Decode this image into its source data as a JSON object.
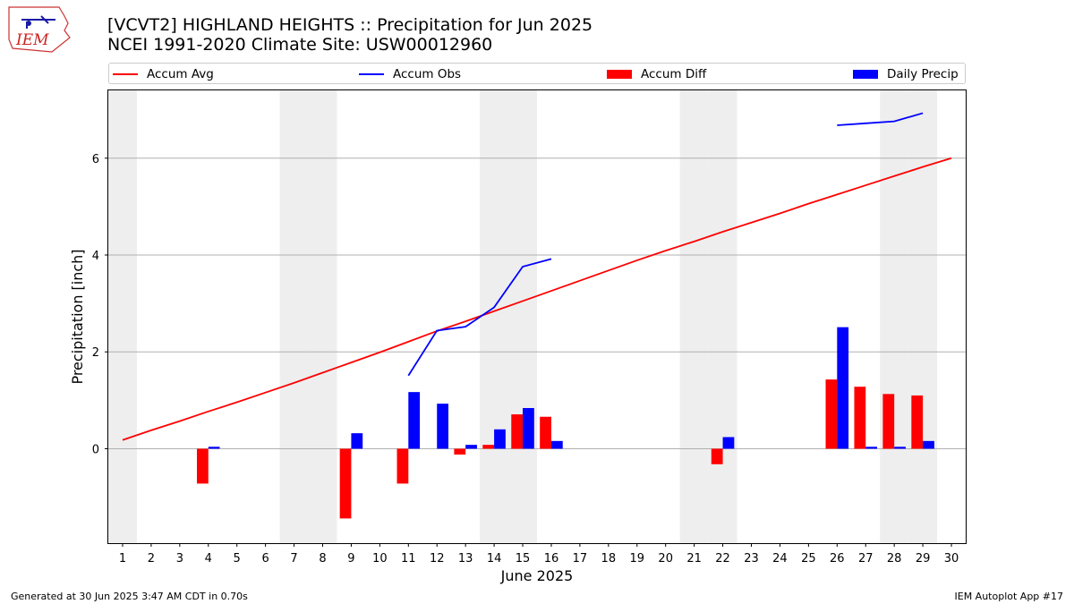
{
  "header": {
    "title_line1": "[VCVT2] HIGHLAND HEIGHTS :: Precipitation for Jun 2025",
    "title_line2": "NCEI 1991-2020 Climate Site: USW00012960",
    "logo_text": "IEM"
  },
  "legend": {
    "placement": "top, above plot",
    "items": [
      {
        "label": "Accum Avg",
        "kind": "line",
        "color": "#ff0000"
      },
      {
        "label": "Accum Obs",
        "kind": "line",
        "color": "#0000ff"
      },
      {
        "label": "Accum Diff",
        "kind": "bar",
        "color": "#ff0000"
      },
      {
        "label": "Daily Precip",
        "kind": "bar",
        "color": "#0000ff"
      }
    ]
  },
  "footer": {
    "left": "Generated at 30 Jun 2025 3:47 AM CDT in 0.70s",
    "right": "IEM Autoplot App #17"
  },
  "colors": {
    "avg": "#ff0000",
    "obs": "#0000ff",
    "diff": "#ff0000",
    "daily": "#0000ff",
    "weekend_shade": "#eeeeee",
    "grid": "#b0b0b0"
  },
  "chart_data": {
    "type": "bar",
    "xlabel": "June 2025",
    "ylabel": "Precipitation [inch]",
    "ylim": [
      -1.95,
      7.4
    ],
    "xlim": [
      0.5,
      30.5
    ],
    "yticks": [
      0,
      2,
      4,
      6
    ],
    "grid": "horizontal",
    "categories": [
      "1",
      "2",
      "3",
      "4",
      "5",
      "6",
      "7",
      "8",
      "9",
      "10",
      "11",
      "12",
      "13",
      "14",
      "15",
      "16",
      "17",
      "18",
      "19",
      "20",
      "21",
      "22",
      "23",
      "24",
      "25",
      "26",
      "27",
      "28",
      "29",
      "30"
    ],
    "weekend_days": [
      1,
      7,
      8,
      14,
      15,
      21,
      22,
      28,
      29
    ],
    "series": [
      {
        "name": "Accum Avg",
        "kind": "line",
        "values": [
          0.18,
          0.38,
          0.57,
          0.77,
          0.96,
          1.16,
          1.36,
          1.57,
          1.78,
          1.99,
          2.21,
          2.43,
          2.63,
          2.84,
          3.05,
          3.26,
          3.47,
          3.68,
          3.89,
          4.09,
          4.28,
          4.48,
          4.67,
          4.86,
          5.06,
          5.25,
          5.44,
          5.63,
          5.82,
          6.0
        ]
      },
      {
        "name": "Accum Obs",
        "kind": "line",
        "values": [
          null,
          null,
          null,
          null,
          null,
          null,
          null,
          null,
          null,
          null,
          1.51,
          2.44,
          2.52,
          2.92,
          3.76,
          3.92,
          null,
          null,
          null,
          null,
          null,
          null,
          null,
          null,
          null,
          6.68,
          6.72,
          6.76,
          6.93,
          null
        ]
      },
      {
        "name": "Accum Diff",
        "kind": "bar",
        "values": [
          null,
          null,
          null,
          -0.72,
          null,
          null,
          null,
          null,
          -1.44,
          null,
          -0.72,
          null,
          -0.12,
          0.08,
          0.71,
          0.66,
          null,
          null,
          null,
          null,
          null,
          -0.32,
          null,
          null,
          null,
          1.43,
          1.28,
          1.13,
          1.1,
          null
        ]
      },
      {
        "name": "Daily Precip",
        "kind": "bar",
        "values": [
          null,
          null,
          null,
          0.04,
          null,
          null,
          null,
          null,
          0.32,
          null,
          1.17,
          0.93,
          0.08,
          0.4,
          0.84,
          0.16,
          null,
          null,
          null,
          null,
          null,
          0.24,
          null,
          null,
          null,
          2.51,
          0.04,
          0.04,
          0.16,
          null
        ]
      }
    ]
  }
}
